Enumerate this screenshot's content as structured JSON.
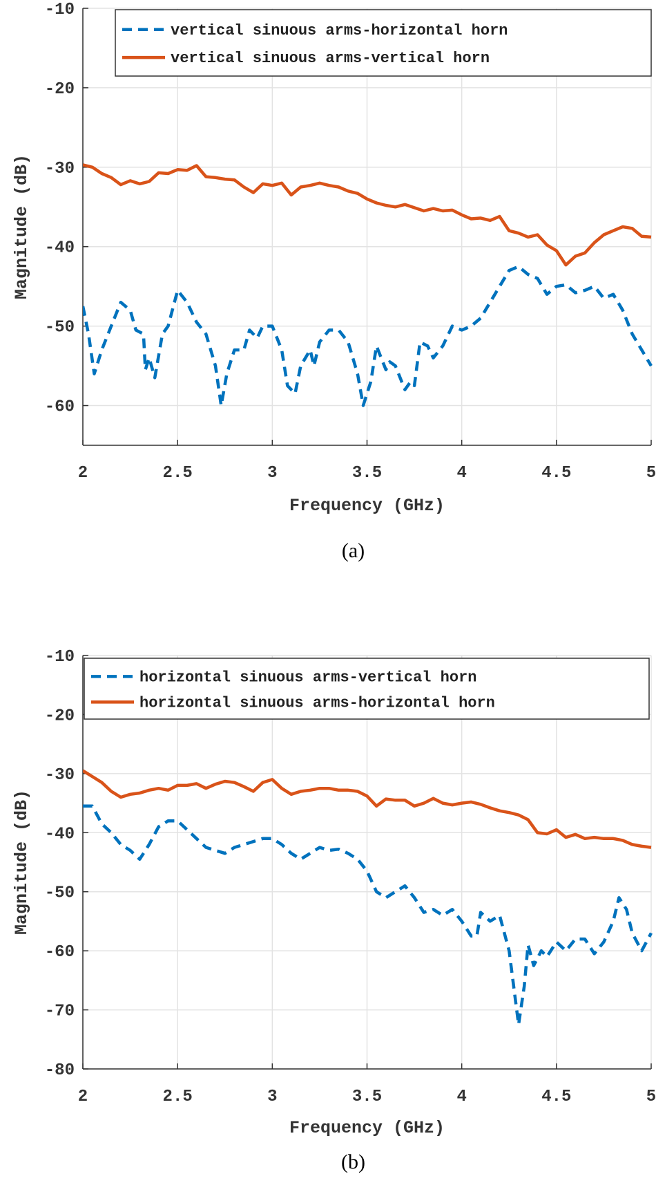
{
  "chart_data": [
    {
      "type": "line",
      "caption": "(a)",
      "xlabel": "Frequency (GHz)",
      "ylabel": "Magnitude (dB)",
      "xlim": [
        2,
        5
      ],
      "ylim": [
        -65,
        -10
      ],
      "xticks": [
        2,
        2.5,
        3,
        3.5,
        4,
        4.5,
        5
      ],
      "yticks": [
        -10,
        -20,
        -30,
        -40,
        -50,
        -60
      ],
      "grid": true,
      "legend": "top-right",
      "series": [
        {
          "name": "vertical sinuous arms-horizontal horn",
          "color": "#0072BD",
          "style": "dashed",
          "x": [
            2.0,
            2.03,
            2.06,
            2.1,
            2.15,
            2.2,
            2.25,
            2.28,
            2.32,
            2.33,
            2.35,
            2.38,
            2.42,
            2.45,
            2.5,
            2.55,
            2.6,
            2.65,
            2.7,
            2.73,
            2.76,
            2.8,
            2.85,
            2.88,
            2.92,
            2.95,
            3.0,
            3.05,
            3.08,
            3.12,
            3.15,
            3.2,
            3.22,
            3.25,
            3.3,
            3.35,
            3.4,
            3.45,
            3.48,
            3.52,
            3.55,
            3.6,
            3.62,
            3.65,
            3.7,
            3.73,
            3.75,
            3.78,
            3.82,
            3.85,
            3.9,
            3.95,
            4.0,
            4.05,
            4.1,
            4.15,
            4.2,
            4.25,
            4.3,
            4.35,
            4.4,
            4.45,
            4.5,
            4.55,
            4.6,
            4.65,
            4.7,
            4.75,
            4.8,
            4.85,
            4.9,
            4.95,
            5.0
          ],
          "y": [
            -47.5,
            -51,
            -56,
            -53,
            -50,
            -47,
            -48,
            -50.5,
            -51,
            -55.5,
            -54,
            -56.5,
            -51,
            -50,
            -45.5,
            -47,
            -49.5,
            -51,
            -55,
            -60,
            -56,
            -53,
            -53,
            -50.5,
            -51.5,
            -50,
            -50,
            -53,
            -57.5,
            -58.5,
            -55,
            -53,
            -55,
            -52,
            -50.5,
            -50.5,
            -52,
            -56,
            -60,
            -57,
            -52.5,
            -55.5,
            -54.5,
            -55,
            -58,
            -57,
            -57.5,
            -52,
            -52.5,
            -54,
            -52.5,
            -50,
            -50.5,
            -50,
            -49,
            -47,
            -45,
            -43,
            -42.5,
            -43.5,
            -44,
            -46,
            -45,
            -44.8,
            -45.8,
            -45.5,
            -45,
            -46.5,
            -46,
            -48,
            -51,
            -53,
            -55
          ]
        },
        {
          "name": "vertical sinuous arms-vertical horn",
          "color": "#D95319",
          "style": "solid",
          "x": [
            2.0,
            2.05,
            2.1,
            2.15,
            2.2,
            2.25,
            2.3,
            2.35,
            2.4,
            2.45,
            2.5,
            2.55,
            2.6,
            2.65,
            2.7,
            2.75,
            2.8,
            2.85,
            2.9,
            2.95,
            3.0,
            3.05,
            3.1,
            3.15,
            3.2,
            3.25,
            3.3,
            3.35,
            3.4,
            3.45,
            3.5,
            3.55,
            3.6,
            3.65,
            3.7,
            3.75,
            3.8,
            3.85,
            3.9,
            3.95,
            4.0,
            4.05,
            4.1,
            4.15,
            4.2,
            4.25,
            4.3,
            4.35,
            4.4,
            4.45,
            4.5,
            4.55,
            4.6,
            4.65,
            4.7,
            4.75,
            4.8,
            4.85,
            4.9,
            4.95,
            5.0
          ],
          "y": [
            -29.7,
            -30,
            -30.8,
            -31.3,
            -32.2,
            -31.7,
            -32.1,
            -31.8,
            -30.7,
            -30.8,
            -30.3,
            -30.4,
            -29.8,
            -31.2,
            -31.3,
            -31.5,
            -31.6,
            -32.5,
            -33.2,
            -32.1,
            -32.3,
            -32,
            -33.5,
            -32.5,
            -32.3,
            -32,
            -32.3,
            -32.5,
            -33,
            -33.3,
            -34,
            -34.5,
            -34.8,
            -35,
            -34.7,
            -35.1,
            -35.5,
            -35.2,
            -35.5,
            -35.4,
            -36,
            -36.5,
            -36.4,
            -36.7,
            -36.2,
            -38,
            -38.3,
            -38.8,
            -38.5,
            -39.8,
            -40.5,
            -42.3,
            -41.2,
            -40.8,
            -39.5,
            -38.5,
            -38,
            -37.5,
            -37.7,
            -38.7,
            -38.8
          ]
        }
      ]
    },
    {
      "type": "line",
      "caption": "(b)",
      "xlabel": "Frequency (GHz)",
      "ylabel": "Magnitude (dB)",
      "xlim": [
        2,
        5
      ],
      "ylim": [
        -80,
        -10
      ],
      "xticks": [
        2,
        2.5,
        3,
        3.5,
        4,
        4.5,
        5
      ],
      "yticks": [
        -10,
        -20,
        -30,
        -40,
        -50,
        -60,
        -70,
        -80
      ],
      "grid": true,
      "legend": "top",
      "series": [
        {
          "name": "horizontal sinuous arms-vertical horn",
          "color": "#0072BD",
          "style": "dashed",
          "x": [
            2.0,
            2.05,
            2.1,
            2.15,
            2.2,
            2.25,
            2.3,
            2.35,
            2.4,
            2.45,
            2.5,
            2.55,
            2.6,
            2.65,
            2.7,
            2.75,
            2.8,
            2.85,
            2.9,
            2.95,
            3.0,
            3.05,
            3.1,
            3.15,
            3.2,
            3.25,
            3.3,
            3.35,
            3.4,
            3.45,
            3.5,
            3.55,
            3.6,
            3.65,
            3.7,
            3.75,
            3.8,
            3.85,
            3.9,
            3.95,
            4.0,
            4.05,
            4.08,
            4.1,
            4.15,
            4.2,
            4.25,
            4.3,
            4.33,
            4.35,
            4.38,
            4.42,
            4.45,
            4.5,
            4.55,
            4.6,
            4.65,
            4.7,
            4.75,
            4.8,
            4.83,
            4.87,
            4.9,
            4.95,
            5.0
          ],
          "y": [
            -35.5,
            -35.5,
            -38.5,
            -40,
            -42,
            -43,
            -44.5,
            -42,
            -39,
            -38,
            -38,
            -39.5,
            -41,
            -42.5,
            -43,
            -43.5,
            -42.5,
            -42,
            -41.5,
            -41,
            -41,
            -42,
            -43.5,
            -44.5,
            -43.5,
            -42.5,
            -43,
            -42.8,
            -43.5,
            -44.5,
            -46.5,
            -50,
            -51,
            -50,
            -49,
            -51,
            -53.5,
            -53,
            -54,
            -53,
            -55,
            -57.5,
            -57.5,
            -53.5,
            -55,
            -54,
            -60,
            -72.5,
            -66,
            -59,
            -62.5,
            -60,
            -61,
            -58.5,
            -60,
            -58,
            -58,
            -60.5,
            -58.5,
            -55,
            -51,
            -53,
            -57,
            -60,
            -57
          ]
        },
        {
          "name": "horizontal sinuous arms-horizontal horn",
          "color": "#D95319",
          "style": "solid",
          "x": [
            2.0,
            2.05,
            2.1,
            2.15,
            2.2,
            2.25,
            2.3,
            2.35,
            2.4,
            2.45,
            2.5,
            2.55,
            2.6,
            2.65,
            2.7,
            2.75,
            2.8,
            2.85,
            2.9,
            2.95,
            3.0,
            3.05,
            3.1,
            3.15,
            3.2,
            3.25,
            3.3,
            3.35,
            3.4,
            3.45,
            3.5,
            3.55,
            3.6,
            3.65,
            3.7,
            3.75,
            3.8,
            3.85,
            3.9,
            3.95,
            4.0,
            4.05,
            4.1,
            4.15,
            4.2,
            4.25,
            4.3,
            4.35,
            4.4,
            4.45,
            4.5,
            4.55,
            4.6,
            4.65,
            4.7,
            4.75,
            4.8,
            4.85,
            4.9,
            4.95,
            5.0
          ],
          "y": [
            -29.5,
            -30.5,
            -31.5,
            -33,
            -34,
            -33.5,
            -33.3,
            -32.8,
            -32.5,
            -32.8,
            -32,
            -32,
            -31.7,
            -32.5,
            -31.8,
            -31.3,
            -31.5,
            -32.2,
            -33,
            -31.5,
            -31,
            -32.5,
            -33.5,
            -33,
            -32.8,
            -32.5,
            -32.5,
            -32.8,
            -32.8,
            -33,
            -33.8,
            -35.5,
            -34.3,
            -34.5,
            -34.5,
            -35.5,
            -35,
            -34.2,
            -35,
            -35.3,
            -35,
            -34.8,
            -35.2,
            -35.8,
            -36.3,
            -36.6,
            -37,
            -37.8,
            -40,
            -40.2,
            -39.5,
            -40.8,
            -40.3,
            -41,
            -40.8,
            -41,
            -41,
            -41.3,
            -42,
            -42.3,
            -42.5
          ]
        }
      ]
    }
  ]
}
